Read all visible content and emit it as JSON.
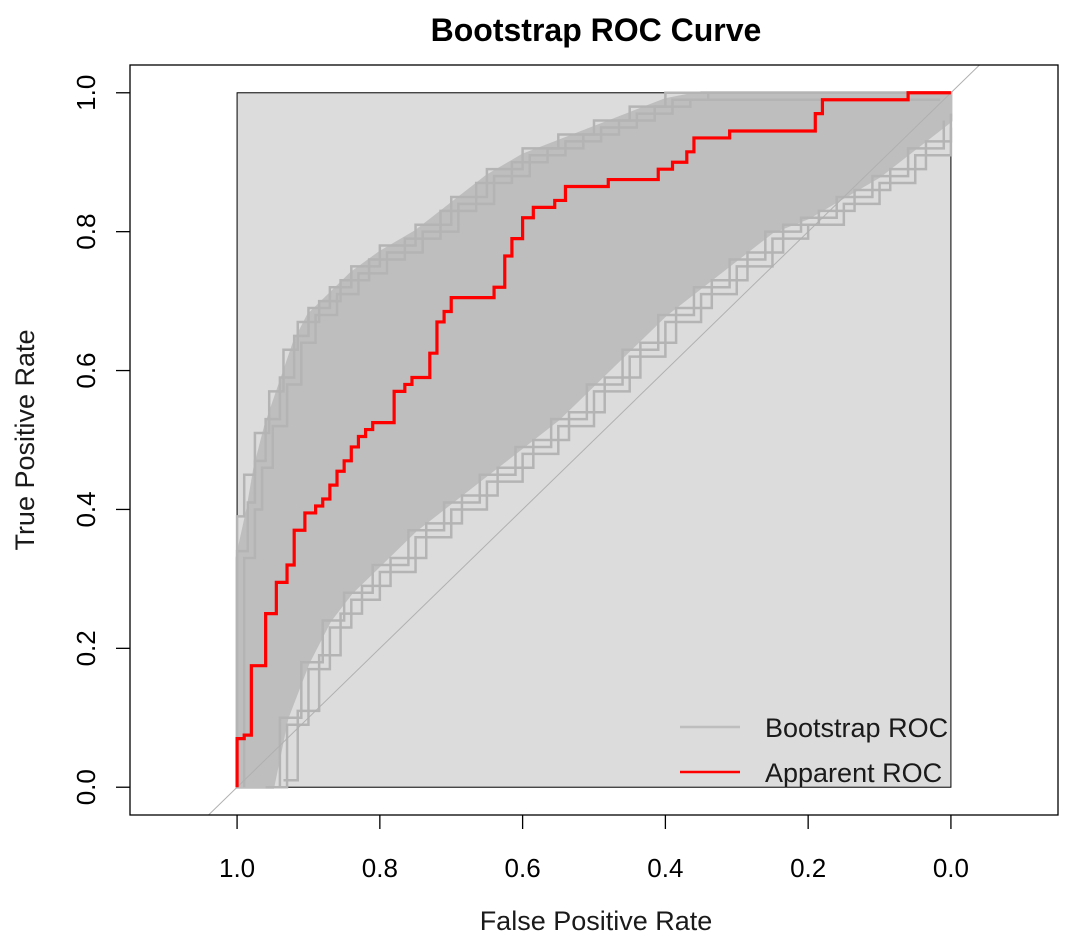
{
  "chart_data": {
    "type": "line",
    "title": "Bootstrap ROC Curve",
    "xlabel": "False Positive Rate",
    "ylabel": "True Positive Rate",
    "x_reversed": true,
    "xlim": [
      1.15,
      -0.15
    ],
    "ylim": [
      -0.04,
      1.04
    ],
    "x_ticks": [
      "1.0",
      "0.8",
      "0.6",
      "0.4",
      "0.2",
      "0.0"
    ],
    "y_ticks": [
      "0.0",
      "0.2",
      "0.4",
      "0.6",
      "0.8",
      "1.0"
    ],
    "grid": false,
    "legend_position": "bottom-right",
    "colors": {
      "bootstrap": "#bebebe",
      "apparent": "#ff0000",
      "fill": "#dcdcdc",
      "diagonal": "#b0b0b0"
    },
    "series": [
      {
        "name": "Bootstrap ROC",
        "role": "bootstrap-envelope",
        "upper": [
          [
            1.0,
            0.0
          ],
          [
            1.0,
            0.33
          ],
          [
            0.985,
            0.4
          ],
          [
            0.975,
            0.46
          ],
          [
            0.96,
            0.52
          ],
          [
            0.94,
            0.58
          ],
          [
            0.92,
            0.64
          ],
          [
            0.9,
            0.68
          ],
          [
            0.87,
            0.71
          ],
          [
            0.84,
            0.74
          ],
          [
            0.8,
            0.77
          ],
          [
            0.75,
            0.8
          ],
          [
            0.7,
            0.84
          ],
          [
            0.65,
            0.88
          ],
          [
            0.6,
            0.91
          ],
          [
            0.55,
            0.93
          ],
          [
            0.5,
            0.95
          ],
          [
            0.45,
            0.97
          ],
          [
            0.4,
            0.99
          ],
          [
            0.35,
            1.0
          ],
          [
            0.0,
            1.0
          ]
        ],
        "lower": [
          [
            0.95,
            0.0
          ],
          [
            0.93,
            0.1
          ],
          [
            0.9,
            0.18
          ],
          [
            0.87,
            0.24
          ],
          [
            0.84,
            0.28
          ],
          [
            0.8,
            0.32
          ],
          [
            0.75,
            0.37
          ],
          [
            0.7,
            0.41
          ],
          [
            0.65,
            0.45
          ],
          [
            0.6,
            0.49
          ],
          [
            0.55,
            0.53
          ],
          [
            0.5,
            0.58
          ],
          [
            0.45,
            0.63
          ],
          [
            0.4,
            0.68
          ],
          [
            0.35,
            0.72
          ],
          [
            0.3,
            0.76
          ],
          [
            0.25,
            0.8
          ],
          [
            0.2,
            0.82
          ],
          [
            0.15,
            0.85
          ],
          [
            0.1,
            0.88
          ],
          [
            0.05,
            0.92
          ],
          [
            0.0,
            0.96
          ]
        ]
      },
      {
        "name": "Apparent ROC",
        "points": [
          [
            1.0,
            0.0
          ],
          [
            1.0,
            0.07
          ],
          [
            0.99,
            0.07
          ],
          [
            0.99,
            0.075
          ],
          [
            0.98,
            0.075
          ],
          [
            0.98,
            0.175
          ],
          [
            0.96,
            0.175
          ],
          [
            0.96,
            0.25
          ],
          [
            0.945,
            0.25
          ],
          [
            0.945,
            0.295
          ],
          [
            0.93,
            0.295
          ],
          [
            0.93,
            0.32
          ],
          [
            0.92,
            0.32
          ],
          [
            0.92,
            0.37
          ],
          [
            0.905,
            0.37
          ],
          [
            0.905,
            0.395
          ],
          [
            0.89,
            0.395
          ],
          [
            0.89,
            0.405
          ],
          [
            0.88,
            0.405
          ],
          [
            0.88,
            0.415
          ],
          [
            0.87,
            0.415
          ],
          [
            0.87,
            0.435
          ],
          [
            0.86,
            0.435
          ],
          [
            0.86,
            0.455
          ],
          [
            0.85,
            0.455
          ],
          [
            0.85,
            0.47
          ],
          [
            0.84,
            0.47
          ],
          [
            0.84,
            0.49
          ],
          [
            0.83,
            0.49
          ],
          [
            0.83,
            0.505
          ],
          [
            0.82,
            0.505
          ],
          [
            0.82,
            0.515
          ],
          [
            0.81,
            0.515
          ],
          [
            0.81,
            0.525
          ],
          [
            0.78,
            0.525
          ],
          [
            0.78,
            0.57
          ],
          [
            0.765,
            0.57
          ],
          [
            0.765,
            0.58
          ],
          [
            0.755,
            0.58
          ],
          [
            0.755,
            0.59
          ],
          [
            0.73,
            0.59
          ],
          [
            0.73,
            0.625
          ],
          [
            0.72,
            0.625
          ],
          [
            0.72,
            0.67
          ],
          [
            0.71,
            0.67
          ],
          [
            0.71,
            0.685
          ],
          [
            0.7,
            0.685
          ],
          [
            0.7,
            0.705
          ],
          [
            0.64,
            0.705
          ],
          [
            0.64,
            0.72
          ],
          [
            0.625,
            0.72
          ],
          [
            0.625,
            0.765
          ],
          [
            0.615,
            0.765
          ],
          [
            0.615,
            0.79
          ],
          [
            0.6,
            0.79
          ],
          [
            0.6,
            0.82
          ],
          [
            0.585,
            0.82
          ],
          [
            0.585,
            0.835
          ],
          [
            0.555,
            0.835
          ],
          [
            0.555,
            0.845
          ],
          [
            0.54,
            0.845
          ],
          [
            0.54,
            0.865
          ],
          [
            0.48,
            0.865
          ],
          [
            0.48,
            0.875
          ],
          [
            0.41,
            0.875
          ],
          [
            0.41,
            0.89
          ],
          [
            0.39,
            0.89
          ],
          [
            0.39,
            0.9
          ],
          [
            0.37,
            0.9
          ],
          [
            0.37,
            0.915
          ],
          [
            0.36,
            0.915
          ],
          [
            0.36,
            0.935
          ],
          [
            0.31,
            0.935
          ],
          [
            0.31,
            0.945
          ],
          [
            0.19,
            0.945
          ],
          [
            0.19,
            0.97
          ],
          [
            0.18,
            0.97
          ],
          [
            0.18,
            0.99
          ],
          [
            0.06,
            0.99
          ],
          [
            0.06,
            1.0
          ],
          [
            0.0,
            1.0
          ]
        ]
      }
    ],
    "legend": [
      {
        "label": "Bootstrap ROC",
        "color": "#bebebe"
      },
      {
        "label": "Apparent ROC",
        "color": "#ff0000"
      }
    ]
  }
}
